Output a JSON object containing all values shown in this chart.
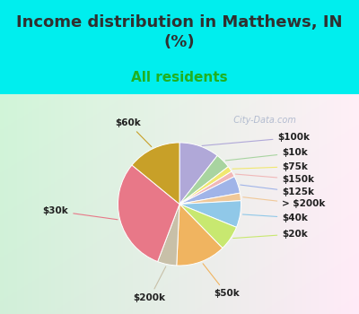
{
  "title": "Income distribution in Matthews, IN\n(%)",
  "subtitle": "All residents",
  "labels": [
    "$100k",
    "$10k",
    "$75k",
    "$150k",
    "$125k",
    "> $200k",
    "$40k",
    "$20k",
    "$50k",
    "$200k",
    "$30k",
    "$60k"
  ],
  "values": [
    10.5,
    4.0,
    1.5,
    1.5,
    4.5,
    2.0,
    7.0,
    6.5,
    13.0,
    5.0,
    30.0,
    14.0
  ],
  "colors": [
    "#b0a8d8",
    "#a8d4a0",
    "#f0e870",
    "#f0b8b8",
    "#a0b4e8",
    "#f0c898",
    "#90c8e8",
    "#c8e870",
    "#f0b460",
    "#c8c0a8",
    "#e87888",
    "#c8a028"
  ],
  "background_color": "#00eeee",
  "title_color": "#303030",
  "subtitle_color": "#20b020",
  "label_color": "#202020",
  "watermark": "City-Data.com",
  "title_fontsize": 13,
  "subtitle_fontsize": 11,
  "label_fontsize": 7.5
}
